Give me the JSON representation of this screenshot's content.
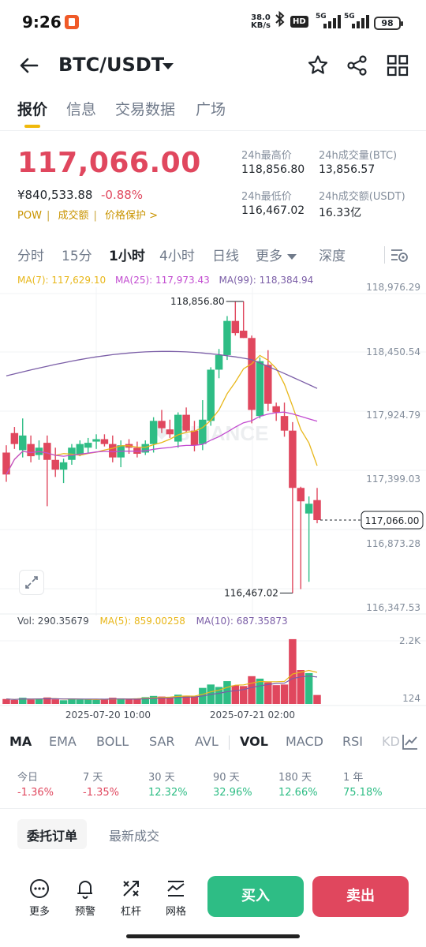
{
  "status_bar": {
    "time": "9:26",
    "net_speed": "38.0",
    "net_unit": "KB/s",
    "hd": "HD",
    "sig1": "5G",
    "sig2": "5G",
    "battery": "98"
  },
  "header": {
    "pair": "BTC/USDT",
    "icons": [
      "back-arrow-icon",
      "star-icon",
      "share-icon",
      "grid-icon"
    ]
  },
  "tabs": [
    "报价",
    "信息",
    "交易数据",
    "广场"
  ],
  "price_info": {
    "last_price": "117,066.00",
    "cny_price": "¥840,533.88",
    "change": "-0.88%",
    "tags": [
      "POW",
      "成交额",
      "价格保护 >"
    ],
    "high_label": "24h最高价",
    "high_value": "118,856.80",
    "low_label": "24h最低价",
    "low_value": "116,467.02",
    "vol_btc_label": "24h成交量(BTC)",
    "vol_btc_value": "13,856.57",
    "vol_usdt_label": "24h成交额(USDT)",
    "vol_usdt_value": "16.33亿"
  },
  "intervals": [
    "分时",
    "15分",
    "1小时",
    "4小时",
    "日线",
    "更多",
    "深度"
  ],
  "active_interval": "1小时",
  "ma_legend": {
    "ma7": "MA(7): 117,629.10",
    "ma25": "MA(25): 117,973.43",
    "ma99": "MA(99): 118,384.94"
  },
  "colors": {
    "up": "#2ebd85",
    "down": "#e0475e",
    "ma7": "#e8b71a",
    "ma25": "#c24bd0",
    "ma99": "#7b5ea7",
    "accent": "#f0b90b"
  },
  "watermark": "BINANCE",
  "vol_legend": {
    "vol": "Vol: 290.35679",
    "ma5": "MA(5): 859.00258",
    "ma10": "MA(10): 687.35873"
  },
  "chart_data": {
    "type": "candlestick",
    "y_ticks": [
      "118,976.29",
      "118,450.54",
      "117,924.79",
      "117,399.03",
      "116,873.28",
      "116,347.53"
    ],
    "ylim": [
      116347.53,
      118976.29
    ],
    "current_price": 117066.0,
    "current_price_label": "117,066.00",
    "high_annotation": "118,856.80",
    "low_annotation": "116,467.02",
    "x_labels": [
      "2025-07-20 10:00",
      "2025-07-21 02:00"
    ],
    "vol_ticks": [
      "2.2K",
      "124"
    ],
    "candles": [
      {
        "o": 117620,
        "h": 117680,
        "l": 117380,
        "c": 117440
      },
      {
        "o": 117780,
        "h": 117830,
        "l": 117650,
        "c": 117690
      },
      {
        "o": 117640,
        "h": 117900,
        "l": 117580,
        "c": 117760
      },
      {
        "o": 117690,
        "h": 117760,
        "l": 117540,
        "c": 117590
      },
      {
        "o": 117600,
        "h": 117720,
        "l": 117560,
        "c": 117660
      },
      {
        "o": 117700,
        "h": 117760,
        "l": 117180,
        "c": 117560
      },
      {
        "o": 117560,
        "h": 117660,
        "l": 117420,
        "c": 117480
      },
      {
        "o": 117480,
        "h": 117570,
        "l": 117370,
        "c": 117540
      },
      {
        "o": 117560,
        "h": 117690,
        "l": 117520,
        "c": 117660
      },
      {
        "o": 117600,
        "h": 117720,
        "l": 117590,
        "c": 117690
      },
      {
        "o": 117660,
        "h": 117740,
        "l": 117610,
        "c": 117700
      },
      {
        "o": 117710,
        "h": 117770,
        "l": 117650,
        "c": 117730
      },
      {
        "o": 117730,
        "h": 117770,
        "l": 117670,
        "c": 117690
      },
      {
        "o": 117690,
        "h": 117760,
        "l": 117540,
        "c": 117580
      },
      {
        "o": 117580,
        "h": 117720,
        "l": 117500,
        "c": 117680
      },
      {
        "o": 117690,
        "h": 117730,
        "l": 117610,
        "c": 117660
      },
      {
        "o": 117660,
        "h": 117710,
        "l": 117580,
        "c": 117610
      },
      {
        "o": 117620,
        "h": 117720,
        "l": 117600,
        "c": 117690
      },
      {
        "o": 117690,
        "h": 117910,
        "l": 117620,
        "c": 117880
      },
      {
        "o": 117880,
        "h": 117970,
        "l": 117780,
        "c": 117820
      },
      {
        "o": 117810,
        "h": 117890,
        "l": 117740,
        "c": 117770
      },
      {
        "o": 117710,
        "h": 117950,
        "l": 117660,
        "c": 117930
      },
      {
        "o": 117930,
        "h": 117990,
        "l": 117790,
        "c": 117800
      },
      {
        "o": 117800,
        "h": 117880,
        "l": 117630,
        "c": 117680
      },
      {
        "o": 117690,
        "h": 118050,
        "l": 117640,
        "c": 117890
      },
      {
        "o": 117880,
        "h": 118320,
        "l": 117840,
        "c": 118300
      },
      {
        "o": 118300,
        "h": 118470,
        "l": 118230,
        "c": 118420
      },
      {
        "o": 118420,
        "h": 118740,
        "l": 118380,
        "c": 118700
      },
      {
        "o": 118700,
        "h": 118856,
        "l": 118580,
        "c": 118600
      },
      {
        "o": 118620,
        "h": 118860,
        "l": 118560,
        "c": 118560
      },
      {
        "o": 118560,
        "h": 118580,
        "l": 117860,
        "c": 117970
      },
      {
        "o": 117920,
        "h": 118400,
        "l": 117900,
        "c": 118370
      },
      {
        "o": 118340,
        "h": 118460,
        "l": 117960,
        "c": 118020
      },
      {
        "o": 118000,
        "h": 118030,
        "l": 117880,
        "c": 117950
      },
      {
        "o": 117920,
        "h": 118030,
        "l": 117750,
        "c": 117800
      },
      {
        "o": 117800,
        "h": 117870,
        "l": 116467,
        "c": 117330
      },
      {
        "o": 117330,
        "h": 117340,
        "l": 116500,
        "c": 117220
      },
      {
        "o": 117120,
        "h": 117260,
        "l": 116560,
        "c": 117200
      },
      {
        "o": 117230,
        "h": 117330,
        "l": 117040,
        "c": 117066
      }
    ],
    "volumes": [
      160,
      130,
      200,
      140,
      170,
      210,
      150,
      120,
      170,
      140,
      160,
      130,
      150,
      200,
      180,
      150,
      170,
      220,
      260,
      240,
      210,
      300,
      270,
      250,
      520,
      630,
      550,
      740,
      600,
      580,
      900,
      820,
      700,
      610,
      630,
      2100,
      1100,
      1000,
      290
    ]
  },
  "indicators": [
    "MA",
    "EMA",
    "BOLL",
    "SAR",
    "AVL",
    "VOL",
    "MACD",
    "RSI",
    "KD"
  ],
  "active_main_indicator": "MA",
  "active_sub_indicator": "VOL",
  "performance": [
    {
      "label": "今日",
      "value": "-1.36%",
      "dir": "down"
    },
    {
      "label": "7 天",
      "value": "-1.35%",
      "dir": "down"
    },
    {
      "label": "30 天",
      "value": "12.32%",
      "dir": "up"
    },
    {
      "label": "90 天",
      "value": "32.96%",
      "dir": "up"
    },
    {
      "label": "180 天",
      "value": "12.66%",
      "dir": "up"
    },
    {
      "label": "1 年",
      "value": "75.18%",
      "dir": "up"
    }
  ],
  "order_tabs": [
    "委托订单",
    "最新成交"
  ],
  "bottom_bar": {
    "more": "更多",
    "alert": "预警",
    "leverage": "杠杆",
    "grid": "网格",
    "buy": "买入",
    "sell": "卖出"
  }
}
